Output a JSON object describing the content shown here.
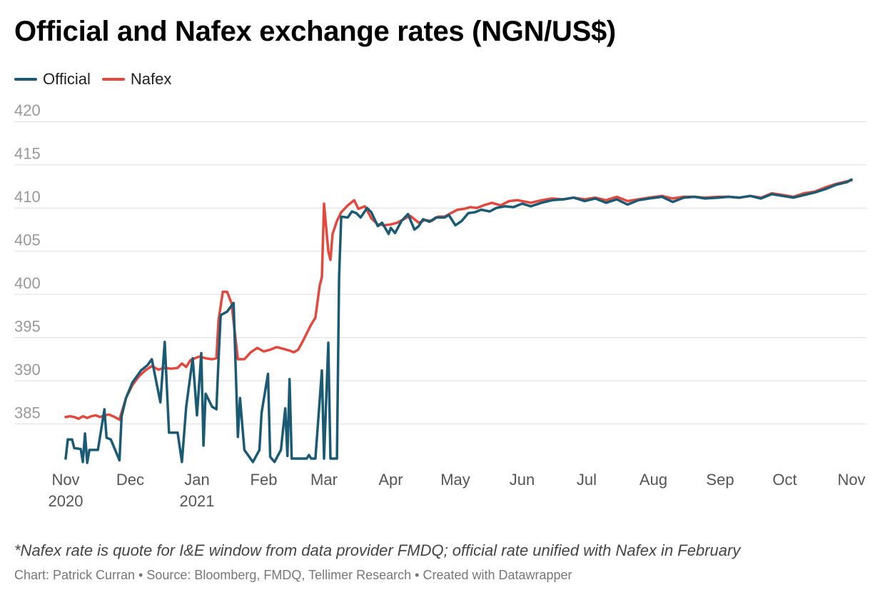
{
  "header": {
    "title": "Official and Nafex exchange rates (NGN/US$)"
  },
  "footer": {
    "note": "*Nafex rate is quote for I&E window from data provider FMDQ; official rate unified with Nafex in February",
    "credit": "Chart: Patrick Curran • Source: Bloomberg, FMDQ, Tellimer Research • Created with Datawrapper"
  },
  "colors": {
    "official": "#1a5a73",
    "nafex": "#e2483d",
    "grid": "#dddddd",
    "tick_label": "#999999",
    "x_label": "#555555"
  },
  "chart_data": {
    "type": "line",
    "title": "Official and Nafex exchange rates (NGN/US$)",
    "xlabel": "",
    "ylabel": "",
    "ylim": [
      380.5,
      422.5
    ],
    "y_ticks": [
      385,
      390,
      395,
      400,
      405,
      410,
      415,
      420
    ],
    "x_range": [
      "2020-11-01",
      "2021-11-01"
    ],
    "x_ticks": [
      {
        "date": "2020-11-01",
        "label": "Nov",
        "sublabel": "2020"
      },
      {
        "date": "2020-12-01",
        "label": "Dec",
        "sublabel": ""
      },
      {
        "date": "2021-01-01",
        "label": "Jan",
        "sublabel": "2021"
      },
      {
        "date": "2021-02-01",
        "label": "Feb",
        "sublabel": ""
      },
      {
        "date": "2021-03-01",
        "label": "Mar",
        "sublabel": ""
      },
      {
        "date": "2021-04-01",
        "label": "Apr",
        "sublabel": ""
      },
      {
        "date": "2021-05-01",
        "label": "May",
        "sublabel": ""
      },
      {
        "date": "2021-06-01",
        "label": "Jun",
        "sublabel": ""
      },
      {
        "date": "2021-07-01",
        "label": "Jul",
        "sublabel": ""
      },
      {
        "date": "2021-08-01",
        "label": "Aug",
        "sublabel": ""
      },
      {
        "date": "2021-09-01",
        "label": "Sep",
        "sublabel": ""
      },
      {
        "date": "2021-10-01",
        "label": "Oct",
        "sublabel": ""
      },
      {
        "date": "2021-11-01",
        "label": "Nov",
        "sublabel": ""
      }
    ],
    "grid": true,
    "legend": "top-left",
    "series": [
      {
        "name": "Official",
        "color": "#1a5a73",
        "points": [
          [
            "2020-11-01",
            381.0
          ],
          [
            "2020-11-02",
            383.2
          ],
          [
            "2020-11-04",
            383.2
          ],
          [
            "2020-11-05",
            382.2
          ],
          [
            "2020-11-08",
            382.1
          ],
          [
            "2020-11-09",
            380.6
          ],
          [
            "2020-11-10",
            383.9
          ],
          [
            "2020-11-11",
            380.5
          ],
          [
            "2020-11-12",
            382.0
          ],
          [
            "2020-11-16",
            382.0
          ],
          [
            "2020-11-19",
            386.7
          ],
          [
            "2020-11-20",
            383.4
          ],
          [
            "2020-11-22",
            383.2
          ],
          [
            "2020-11-26",
            380.8
          ],
          [
            "2020-11-27",
            385.9
          ],
          [
            "2020-11-29",
            388.0
          ],
          [
            "2020-12-02",
            389.8
          ],
          [
            "2020-12-06",
            391.2
          ],
          [
            "2020-12-09",
            391.8
          ],
          [
            "2020-12-11",
            392.5
          ],
          [
            "2020-12-15",
            387.5
          ],
          [
            "2020-12-17",
            394.5
          ],
          [
            "2020-12-19",
            384.0
          ],
          [
            "2020-12-23",
            384.0
          ],
          [
            "2020-12-25",
            380.6
          ],
          [
            "2020-12-27",
            387.0
          ],
          [
            "2020-12-30",
            392.6
          ],
          [
            "2021-01-01",
            386.0
          ],
          [
            "2021-01-03",
            393.2
          ],
          [
            "2021-01-04",
            382.5
          ],
          [
            "2021-01-05",
            388.5
          ],
          [
            "2021-01-08",
            387.0
          ],
          [
            "2021-01-10",
            386.7
          ],
          [
            "2021-01-11",
            392.5
          ],
          [
            "2021-01-12",
            397.6
          ],
          [
            "2021-01-15",
            398.0
          ],
          [
            "2021-01-18",
            399.0
          ],
          [
            "2021-01-20",
            383.5
          ],
          [
            "2021-01-21",
            388.0
          ],
          [
            "2021-01-23",
            382.0
          ],
          [
            "2021-01-27",
            380.6
          ],
          [
            "2021-01-30",
            382.0
          ],
          [
            "2021-01-31",
            386.3
          ],
          [
            "2021-02-03",
            390.8
          ],
          [
            "2021-02-04",
            381.2
          ],
          [
            "2021-02-06",
            380.6
          ],
          [
            "2021-02-09",
            382.0
          ],
          [
            "2021-02-11",
            386.8
          ],
          [
            "2021-02-12",
            381.3
          ],
          [
            "2021-02-13",
            390.2
          ],
          [
            "2021-02-14",
            381.0
          ],
          [
            "2021-02-21",
            381.0
          ],
          [
            "2021-02-22",
            381.4
          ],
          [
            "2021-02-23",
            381.0
          ],
          [
            "2021-02-25",
            381.0
          ],
          [
            "2021-02-28",
            391.2
          ],
          [
            "2021-03-01",
            381.0
          ],
          [
            "2021-03-03",
            394.4
          ],
          [
            "2021-03-04",
            381.0
          ],
          [
            "2021-03-07",
            381.0
          ],
          [
            "2021-03-08",
            402.0
          ],
          [
            "2021-03-09",
            409.0
          ],
          [
            "2021-03-12",
            408.9
          ],
          [
            "2021-03-14",
            409.6
          ],
          [
            "2021-03-16",
            409.4
          ],
          [
            "2021-03-18",
            408.9
          ],
          [
            "2021-03-21",
            410.0
          ],
          [
            "2021-03-23",
            409.5
          ],
          [
            "2021-03-26",
            407.9
          ],
          [
            "2021-03-28",
            408.3
          ],
          [
            "2021-03-31",
            407.0
          ],
          [
            "2021-04-01",
            407.7
          ],
          [
            "2021-04-03",
            407.1
          ],
          [
            "2021-04-06",
            408.5
          ],
          [
            "2021-04-09",
            409.3
          ],
          [
            "2021-04-12",
            407.5
          ],
          [
            "2021-04-14",
            407.9
          ],
          [
            "2021-04-16",
            408.7
          ],
          [
            "2021-04-19",
            408.4
          ],
          [
            "2021-04-22",
            408.9
          ],
          [
            "2021-04-26",
            408.9
          ],
          [
            "2021-04-28",
            409.2
          ],
          [
            "2021-05-01",
            408.0
          ],
          [
            "2021-05-04",
            408.5
          ],
          [
            "2021-05-07",
            409.4
          ],
          [
            "2021-05-10",
            409.5
          ],
          [
            "2021-05-13",
            409.8
          ],
          [
            "2021-05-17",
            409.6
          ],
          [
            "2021-05-20",
            410.0
          ],
          [
            "2021-05-24",
            410.2
          ],
          [
            "2021-05-28",
            410.1
          ],
          [
            "2021-06-01",
            410.5
          ],
          [
            "2021-06-05",
            410.2
          ],
          [
            "2021-06-10",
            410.6
          ],
          [
            "2021-06-15",
            410.9
          ],
          [
            "2021-06-20",
            411.0
          ],
          [
            "2021-06-25",
            411.2
          ],
          [
            "2021-06-30",
            410.8
          ],
          [
            "2021-07-05",
            411.1
          ],
          [
            "2021-07-10",
            410.6
          ],
          [
            "2021-07-15",
            411.0
          ],
          [
            "2021-07-20",
            410.4
          ],
          [
            "2021-07-25",
            410.9
          ],
          [
            "2021-07-30",
            411.1
          ],
          [
            "2021-08-05",
            411.3
          ],
          [
            "2021-08-10",
            410.7
          ],
          [
            "2021-08-15",
            411.2
          ],
          [
            "2021-08-20",
            411.3
          ],
          [
            "2021-08-25",
            411.1
          ],
          [
            "2021-08-31",
            411.2
          ],
          [
            "2021-09-05",
            411.3
          ],
          [
            "2021-09-10",
            411.2
          ],
          [
            "2021-09-15",
            411.4
          ],
          [
            "2021-09-20",
            411.1
          ],
          [
            "2021-09-25",
            411.6
          ],
          [
            "2021-09-30",
            411.4
          ],
          [
            "2021-10-05",
            411.2
          ],
          [
            "2021-10-10",
            411.5
          ],
          [
            "2021-10-15",
            411.8
          ],
          [
            "2021-10-20",
            412.2
          ],
          [
            "2021-10-25",
            412.7
          ],
          [
            "2021-10-30",
            413.0
          ],
          [
            "2021-11-01",
            413.3
          ]
        ]
      },
      {
        "name": "Nafex",
        "color": "#e2483d",
        "points": [
          [
            "2020-11-01",
            385.8
          ],
          [
            "2020-11-03",
            385.9
          ],
          [
            "2020-11-05",
            385.8
          ],
          [
            "2020-11-07",
            385.6
          ],
          [
            "2020-11-09",
            385.9
          ],
          [
            "2020-11-11",
            385.7
          ],
          [
            "2020-11-13",
            385.9
          ],
          [
            "2020-11-15",
            386.0
          ],
          [
            "2020-11-17",
            385.8
          ],
          [
            "2020-11-19",
            386.0
          ],
          [
            "2020-11-21",
            386.1
          ],
          [
            "2020-11-23",
            385.9
          ],
          [
            "2020-11-26",
            385.5
          ],
          [
            "2020-11-29",
            388.0
          ],
          [
            "2020-12-02",
            389.5
          ],
          [
            "2020-12-05",
            390.5
          ],
          [
            "2020-12-08",
            391.2
          ],
          [
            "2020-12-11",
            391.7
          ],
          [
            "2020-12-14",
            391.3
          ],
          [
            "2020-12-17",
            391.5
          ],
          [
            "2020-12-20",
            391.4
          ],
          [
            "2020-12-23",
            391.5
          ],
          [
            "2020-12-25",
            392.0
          ],
          [
            "2020-12-27",
            391.6
          ],
          [
            "2020-12-29",
            392.4
          ],
          [
            "2020-12-31",
            392.6
          ],
          [
            "2021-01-02",
            392.8
          ],
          [
            "2021-01-05",
            392.6
          ],
          [
            "2021-01-08",
            392.5
          ],
          [
            "2021-01-10",
            392.6
          ],
          [
            "2021-01-11",
            397.0
          ],
          [
            "2021-01-13",
            400.3
          ],
          [
            "2021-01-15",
            400.3
          ],
          [
            "2021-01-17",
            399.0
          ],
          [
            "2021-01-20",
            392.5
          ],
          [
            "2021-01-23",
            392.5
          ],
          [
            "2021-01-26",
            393.3
          ],
          [
            "2021-01-29",
            393.8
          ],
          [
            "2021-02-01",
            393.4
          ],
          [
            "2021-02-04",
            393.6
          ],
          [
            "2021-02-07",
            393.9
          ],
          [
            "2021-02-10",
            393.7
          ],
          [
            "2021-02-13",
            393.5
          ],
          [
            "2021-02-15",
            393.3
          ],
          [
            "2021-02-17",
            393.6
          ],
          [
            "2021-02-19",
            394.5
          ],
          [
            "2021-02-21",
            395.5
          ],
          [
            "2021-02-23",
            396.5
          ],
          [
            "2021-02-25",
            397.3
          ],
          [
            "2021-02-27",
            401.0
          ],
          [
            "2021-02-28",
            402.0
          ],
          [
            "2021-03-01",
            410.5
          ],
          [
            "2021-03-03",
            405.0
          ],
          [
            "2021-03-04",
            404.0
          ],
          [
            "2021-03-05",
            407.0
          ],
          [
            "2021-03-07",
            408.5
          ],
          [
            "2021-03-09",
            409.5
          ],
          [
            "2021-03-12",
            410.3
          ],
          [
            "2021-03-15",
            410.9
          ],
          [
            "2021-03-17",
            409.9
          ],
          [
            "2021-03-20",
            410.2
          ],
          [
            "2021-03-23",
            408.8
          ],
          [
            "2021-03-26",
            408.1
          ],
          [
            "2021-03-29",
            408.0
          ],
          [
            "2021-04-01",
            408.1
          ],
          [
            "2021-04-04",
            408.3
          ],
          [
            "2021-04-07",
            408.7
          ],
          [
            "2021-04-10",
            409.1
          ],
          [
            "2021-04-14",
            408.3
          ],
          [
            "2021-04-17",
            408.6
          ],
          [
            "2021-04-20",
            408.5
          ],
          [
            "2021-04-23",
            409.0
          ],
          [
            "2021-04-26",
            409.0
          ],
          [
            "2021-04-29",
            409.4
          ],
          [
            "2021-05-02",
            409.8
          ],
          [
            "2021-05-05",
            409.9
          ],
          [
            "2021-05-08",
            410.1
          ],
          [
            "2021-05-11",
            410.0
          ],
          [
            "2021-05-14",
            410.3
          ],
          [
            "2021-05-18",
            410.6
          ],
          [
            "2021-05-22",
            410.3
          ],
          [
            "2021-05-26",
            410.8
          ],
          [
            "2021-05-30",
            410.9
          ],
          [
            "2021-06-05",
            410.6
          ],
          [
            "2021-06-10",
            410.9
          ],
          [
            "2021-06-15",
            411.1
          ],
          [
            "2021-06-20",
            411.0
          ],
          [
            "2021-06-25",
            411.2
          ],
          [
            "2021-06-30",
            411.0
          ],
          [
            "2021-07-05",
            411.2
          ],
          [
            "2021-07-10",
            410.9
          ],
          [
            "2021-07-15",
            411.3
          ],
          [
            "2021-07-20",
            410.8
          ],
          [
            "2021-07-25",
            411.0
          ],
          [
            "2021-07-30",
            411.2
          ],
          [
            "2021-08-05",
            411.4
          ],
          [
            "2021-08-10",
            411.1
          ],
          [
            "2021-08-15",
            411.3
          ],
          [
            "2021-08-20",
            411.3
          ],
          [
            "2021-08-25",
            411.2
          ],
          [
            "2021-08-31",
            411.3
          ],
          [
            "2021-09-05",
            411.3
          ],
          [
            "2021-09-10",
            411.2
          ],
          [
            "2021-09-15",
            411.4
          ],
          [
            "2021-09-20",
            411.2
          ],
          [
            "2021-09-25",
            411.7
          ],
          [
            "2021-09-30",
            411.5
          ],
          [
            "2021-10-05",
            411.3
          ],
          [
            "2021-10-10",
            411.7
          ],
          [
            "2021-10-15",
            411.9
          ],
          [
            "2021-10-20",
            412.4
          ],
          [
            "2021-10-25",
            412.8
          ],
          [
            "2021-10-30",
            413.1
          ],
          [
            "2021-11-01",
            413.2
          ]
        ]
      }
    ]
  }
}
